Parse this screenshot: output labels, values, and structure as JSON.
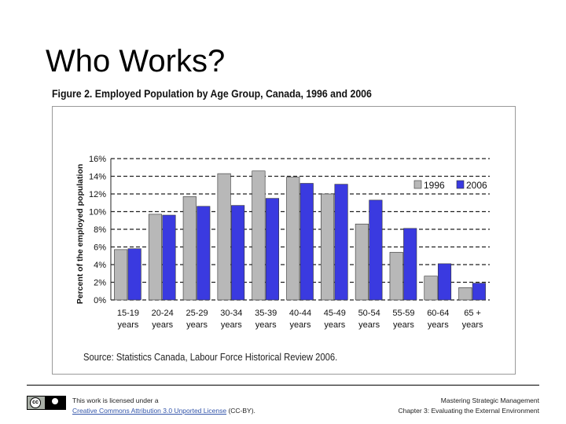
{
  "slide": {
    "title": "Who Works?",
    "figure_caption": "Figure 2. Employed Population by Age Group, Canada, 1996 and 2006",
    "source": "Source: Statistics Canada, Labour Force Historical Review 2006."
  },
  "footer": {
    "license_prefix": "This work is licensed under a",
    "license_link": "Creative Commons Attribution 3.0 Unported License",
    "license_suffix": "(CC-BY).",
    "book_title": "Mastering Strategic Management",
    "chapter": "Chapter 3: Evaluating the External Environment"
  },
  "chart_data": {
    "type": "bar",
    "title": "Employed Population by Age Group, Canada, 1996 and 2006",
    "ylabel": "Percent of the employed population",
    "ylim": [
      0,
      16
    ],
    "yticks": [
      "0%",
      "2%",
      "4%",
      "6%",
      "8%",
      "10%",
      "12%",
      "14%",
      "16%"
    ],
    "grid": true,
    "legend_position": "right",
    "categories": [
      "15-19 years",
      "20-24 years",
      "25-29 years",
      "30-34 years",
      "35-39 years",
      "40-44 years",
      "45-49 years",
      "50-54 years",
      "55-59 years",
      "60-64 years",
      "65 + years"
    ],
    "category_lines": [
      [
        "15-19",
        "years"
      ],
      [
        "20-24",
        "years"
      ],
      [
        "25-29",
        "years"
      ],
      [
        "30-34",
        "years"
      ],
      [
        "35-39",
        "years"
      ],
      [
        "40-44",
        "years"
      ],
      [
        "45-49",
        "years"
      ],
      [
        "50-54",
        "years"
      ],
      [
        "55-59",
        "years"
      ],
      [
        "60-64",
        "years"
      ],
      [
        "65 +",
        "years"
      ]
    ],
    "series": [
      {
        "name": "1996",
        "color": "#b8b8b8",
        "values": [
          5.7,
          9.7,
          11.7,
          14.3,
          14.6,
          13.9,
          12.0,
          8.6,
          5.4,
          2.7,
          1.4
        ]
      },
      {
        "name": "2006",
        "color": "#3a3ae0",
        "values": [
          5.8,
          9.6,
          10.6,
          10.7,
          11.5,
          13.2,
          13.1,
          11.3,
          8.1,
          4.1,
          1.9
        ]
      }
    ]
  }
}
